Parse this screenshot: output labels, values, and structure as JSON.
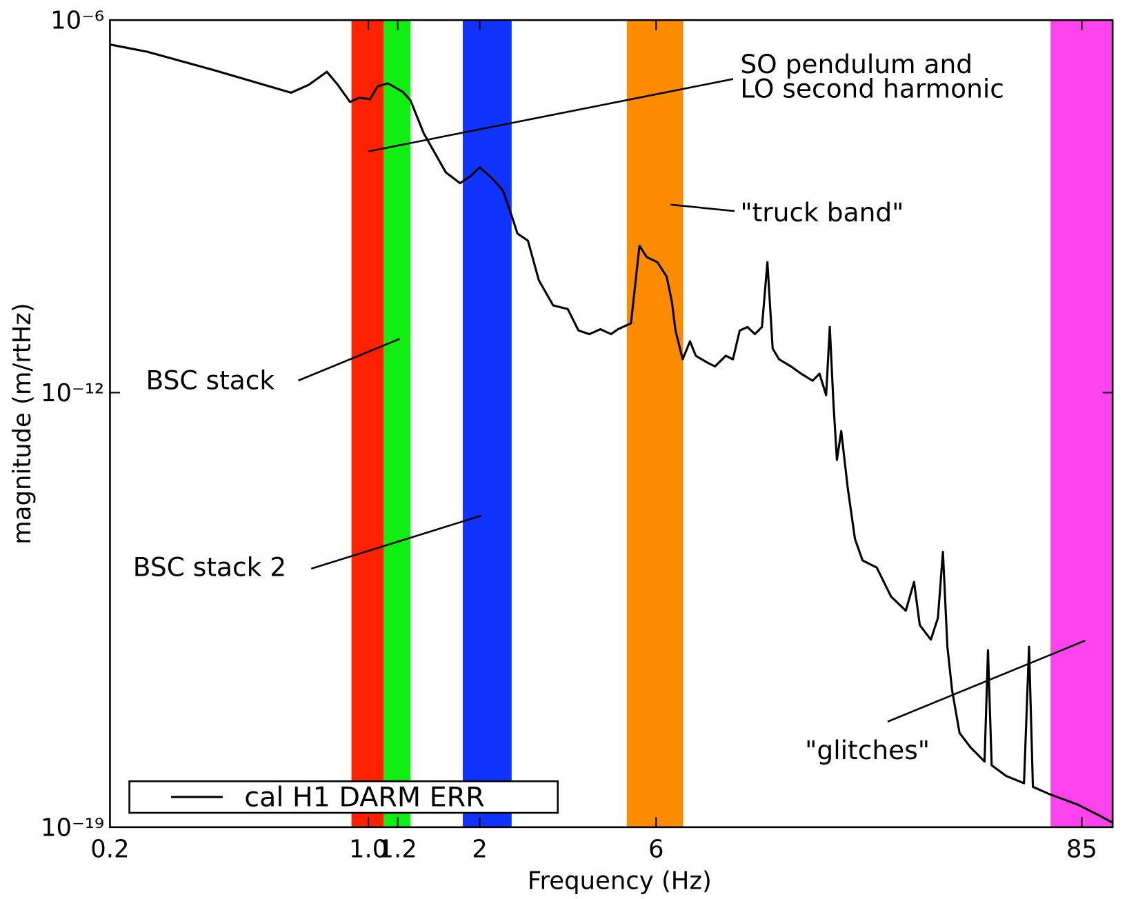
{
  "chart_data": {
    "type": "line",
    "xlabel": "Frequency (Hz)",
    "ylabel": "magnitude (m/rtHz)",
    "xscale": "log",
    "yscale": "log",
    "xlim": [
      0.2,
      103
    ],
    "ylim": [
      1e-19,
      1e-06
    ],
    "xticks": [
      0.2,
      {
        "value": 1,
        "label": "1.0"
      },
      1.2,
      2,
      6,
      85
    ],
    "yticks": [
      {
        "value": 1e-19,
        "label": "10⁻¹⁹"
      },
      {
        "value": 1e-12,
        "label": "10⁻¹²"
      },
      {
        "value": 1e-06,
        "label": "10⁻⁶"
      }
    ],
    "legend": "lower left",
    "bands": [
      {
        "range": [
          0.9,
          1.1
        ],
        "color": "#ff2200"
      },
      {
        "range": [
          1.1,
          1.3
        ],
        "color": "#11ee11"
      },
      {
        "range": [
          1.8,
          2.44
        ],
        "color": "#1133ff"
      },
      {
        "range": [
          5.0,
          7.1
        ],
        "color": "#ff8c00"
      },
      {
        "range": [
          70,
          103
        ],
        "color": "#ff44ee"
      }
    ],
    "annotations": [
      {
        "lines": [
          "SO pendulum and",
          "LO second harmonic"
        ]
      },
      {
        "lines": [
          "\"truck band\""
        ]
      },
      {
        "lines": [
          "BSC stack"
        ]
      },
      {
        "lines": [
          "BSC stack 2"
        ]
      },
      {
        "lines": [
          "\"glitches\""
        ]
      }
    ],
    "x": [
      0.2,
      0.252,
      0.378,
      0.618,
      0.69,
      0.772,
      0.826,
      0.892,
      0.944,
      1.01,
      1.06,
      1.13,
      1.24,
      1.3,
      1.41,
      1.62,
      1.77,
      1.89,
      2.0,
      2.16,
      2.31,
      2.44,
      2.53,
      2.7,
      2.89,
      3.16,
      3.46,
      3.7,
      3.96,
      4.24,
      4.53,
      4.73,
      5.13,
      5.41,
      5.66,
      6.05,
      6.41,
      6.62,
      6.77,
      7.08,
      7.41,
      7.68,
      8.28,
      8.66,
      9.26,
      9.68,
      10.1,
      10.6,
      11.1,
      11.6,
      12.0,
      12.4,
      12.9,
      13.9,
      14.8,
      15.9,
      16.6,
      17.3,
      17.7,
      18.1,
      18.5,
      19.0,
      19.8,
      20.7,
      21.7,
      23.7,
      25.9,
      28.4,
      29.9,
      31.0,
      33.2,
      34.7,
      35.8,
      36.8,
      37.9,
      39.7,
      42.5,
      46.4,
      47.4,
      48.5,
      53.1,
      59.3,
      61.2,
      62.7,
      69.3,
      83.0,
      94.9,
      103
    ],
    "series": [
      {
        "name": "cal H1 DARM ERR",
        "color": "#000000",
        "values": [
          4.04e-07,
          3.1e-07,
          1.59e-07,
          6.78e-08,
          9.08e-08,
          1.47e-07,
          9.08e-08,
          4.8e-08,
          5.62e-08,
          5.33e-08,
          8.6e-08,
          9.57e-08,
          6.97e-08,
          5.06e-08,
          1.52e-08,
          3.52e-09,
          2.36e-09,
          3.08e-09,
          4.24e-09,
          2.84e-09,
          1.81e-09,
          7.1e-10,
          3.65e-10,
          2.8e-10,
          6.45e-11,
          2.54e-11,
          2.22e-11,
          1e-11,
          8.75e-12,
          1.05e-11,
          8.75e-12,
          1.05e-11,
          1.31e-11,
          2.32e-10,
          1.52e-10,
          1.26e-10,
          7.38e-11,
          2.9e-11,
          1e-11,
          3.44e-12,
          6.7e-12,
          3.93e-12,
          3.01e-12,
          2.64e-12,
          3.93e-12,
          3.44e-12,
          1e-11,
          1.14e-11,
          8.75e-12,
          1.14e-11,
          1.26e-10,
          5.14e-12,
          3.44e-12,
          2.64e-12,
          2.02e-12,
          1.55e-12,
          2.02e-12,
          9.08e-13,
          1.14e-11,
          6.96e-13,
          8.26e-14,
          2.4e-13,
          2.84e-14,
          4.4e-15,
          1.98e-15,
          1.52e-15,
          5.22e-16,
          3.06e-16,
          8.9e-16,
          1.8e-16,
          1.05e-16,
          2.34e-16,
          2.72e-15,
          8.07e-17,
          1.63e-17,
          3.3e-18,
          1.94e-18,
          1.14e-18,
          7.07e-17,
          9.95e-19,
          6.68e-19,
          5.1e-19,
          8.07e-17,
          4.47e-19,
          3.43e-19,
          2.3e-19,
          1.54e-19,
          1.18e-19
        ]
      }
    ]
  }
}
